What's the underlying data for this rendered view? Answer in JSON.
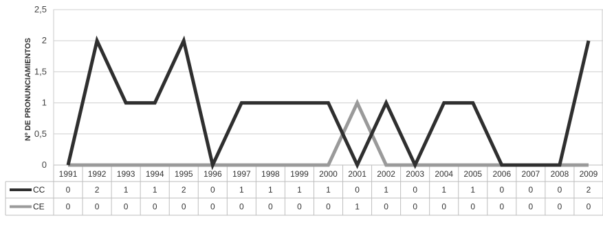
{
  "chart_data": {
    "type": "line",
    "title": "",
    "ylabel": "Nº DE PRONUNCIAMIENTOS",
    "xlabel": "",
    "ylim": [
      0,
      2.5
    ],
    "yticks": [
      0,
      0.5,
      1,
      1.5,
      2,
      2.5
    ],
    "ytick_labels": [
      "0",
      "0,5",
      "1",
      "1,5",
      "2",
      "2,5"
    ],
    "grid": true,
    "legend": "data-table",
    "categories": [
      "1991",
      "1992",
      "1993",
      "1994",
      "1995",
      "1996",
      "1997",
      "1998",
      "1999",
      "2000",
      "2001",
      "2002",
      "2003",
      "2004",
      "2005",
      "2006",
      "2007",
      "2008",
      "2009"
    ],
    "series": [
      {
        "name": "CC",
        "color": "#2f2f2f",
        "values": [
          0,
          2,
          1,
          1,
          2,
          0,
          1,
          1,
          1,
          1,
          0,
          1,
          0,
          1,
          1,
          0,
          0,
          0,
          2
        ]
      },
      {
        "name": "CE",
        "color": "#9a9a9a",
        "values": [
          0,
          0,
          0,
          0,
          0,
          0,
          0,
          0,
          0,
          0,
          1,
          0,
          0,
          0,
          0,
          0,
          0,
          0,
          0
        ]
      }
    ]
  }
}
